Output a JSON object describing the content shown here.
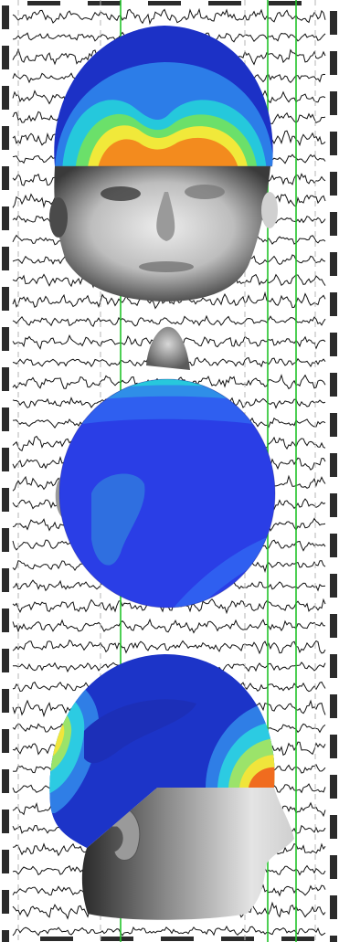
{
  "figure": {
    "background": "#ffffff",
    "eeg": {
      "trace_count": 46,
      "trace_color": "#111111",
      "frame_color": "#2b2b2b",
      "cursor_color": "#22c32a",
      "cursor_count": 3,
      "dashed_guide_color": "#b5b5b5"
    },
    "head_views": [
      {
        "view": "frontal",
        "map_colors": [
          "#1c31c6",
          "#2c7de8",
          "#25c8dc",
          "#6be06a",
          "#f1e93a",
          "#f38b1e"
        ]
      },
      {
        "view": "top",
        "map_colors": [
          "#2a3ee6",
          "#2f5ff0",
          "#2f8ee8",
          "#27c8dc",
          "#f2e23a",
          "#f07e2a"
        ]
      },
      {
        "view": "right-lateral",
        "map_colors": [
          "#1c34c8",
          "#2f7ee6",
          "#2ccbe2",
          "#9be36a",
          "#f0e53b",
          "#f06c1f"
        ]
      }
    ],
    "colormap": [
      "#1c2fb8",
      "#2f6fe0",
      "#28c5e0",
      "#71e07a",
      "#f1e73b",
      "#f07a1f"
    ]
  }
}
